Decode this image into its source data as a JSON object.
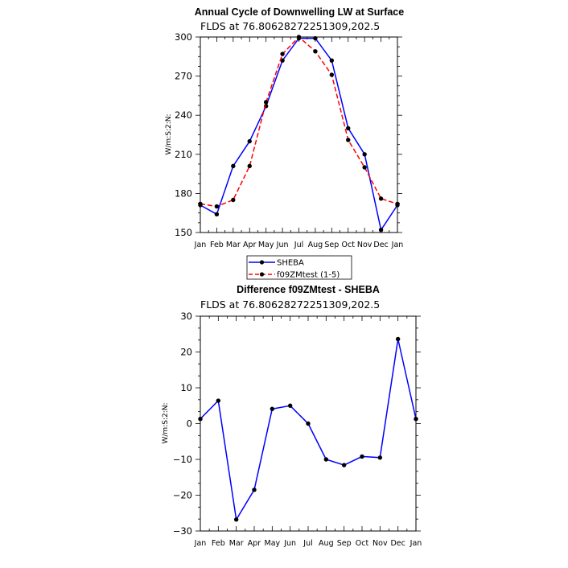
{
  "chart_data": [
    {
      "type": "line",
      "title": "Annual Cycle of Downwelling LW at Surface",
      "subtitle": "FLDS at 76.80628272251309,202.5",
      "ylabel": "W/m:S:2:N:",
      "xlabel": "",
      "categories": [
        "Jan",
        "Feb",
        "Mar",
        "Apr",
        "May",
        "Jun",
        "Jul",
        "Aug",
        "Sep",
        "Oct",
        "Nov",
        "Dec",
        "Jan"
      ],
      "ylim": [
        150,
        300
      ],
      "yticks": [
        150,
        180,
        210,
        240,
        270,
        300
      ],
      "series": [
        {
          "name": "SHEBA",
          "color": "#0000ff",
          "style": "solid",
          "values": [
            171,
            164,
            201,
            220,
            247,
            282,
            299,
            299,
            282,
            230,
            210,
            152,
            171
          ]
        },
        {
          "name": "f09ZMtest (1-5)",
          "color": "#ff0000",
          "style": "dashed",
          "values": [
            172,
            170,
            175,
            201,
            250,
            287,
            300,
            289,
            271,
            221,
            200,
            176,
            172
          ]
        }
      ],
      "legend": "below"
    },
    {
      "type": "line",
      "title": "Difference f09ZMtest - SHEBA",
      "subtitle": "FLDS at 76.80628272251309,202.5",
      "ylabel": "W/m:S:2:N:",
      "xlabel": "",
      "categories": [
        "Jan",
        "Feb",
        "Mar",
        "Apr",
        "May",
        "Jun",
        "Jul",
        "Aug",
        "Sep",
        "Oct",
        "Nov",
        "Dec",
        "Jan"
      ],
      "ylim": [
        -30,
        30
      ],
      "yticks": [
        -30,
        -20,
        -10,
        0,
        10,
        20,
        30
      ],
      "series": [
        {
          "color": "#0000ff",
          "style": "solid",
          "values": [
            1.3,
            6.4,
            -26.8,
            -18.5,
            4.1,
            5.0,
            0.0,
            -10.0,
            -11.6,
            -9.2,
            -9.5,
            23.6,
            1.3
          ]
        }
      ]
    }
  ]
}
